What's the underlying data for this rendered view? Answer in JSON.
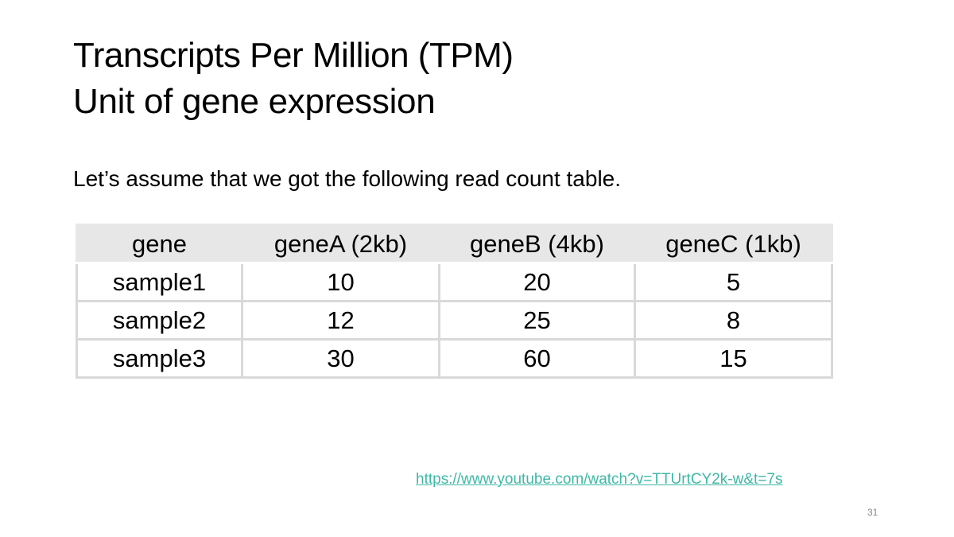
{
  "slide": {
    "title": "Transcripts Per Million (TPM)",
    "subtitle": "Unit of gene expression",
    "intro": "Let’s assume that we got the following read count table.",
    "table": {
      "headers": [
        "gene",
        "geneA (2kb)",
        "geneB (4kb)",
        "geneC (1kb)"
      ],
      "rows": [
        [
          "sample1",
          "10",
          "20",
          "5"
        ],
        [
          "sample2",
          "12",
          "25",
          "8"
        ],
        [
          "sample3",
          "30",
          "60",
          "15"
        ]
      ]
    },
    "link": "https://www.youtube.com/watch?v=TTUrtCY2k-w&t=7s",
    "page_number": "31",
    "colors": {
      "link": "#3fb8a5",
      "header_bg": "#e7e7e7",
      "grid": "#d9d9d9"
    }
  }
}
